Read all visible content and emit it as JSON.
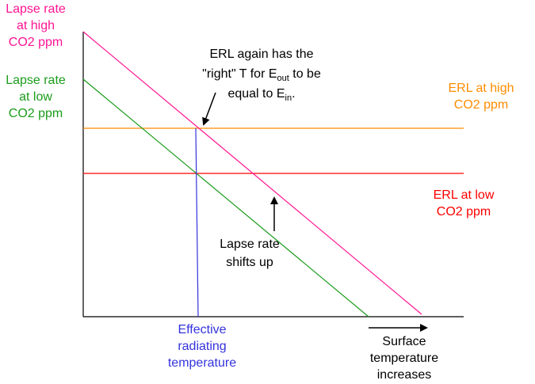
{
  "colors": {
    "high_lapse": "#ff1493",
    "low_lapse": "#1a9c1a",
    "erl_high": "#ff8c00",
    "erl_low": "#ff0000",
    "effective_temp": "#3333dd",
    "axis": "#000000"
  },
  "labels": {
    "lapse_high": [
      "Lapse rate",
      "at high",
      "CO2 ppm"
    ],
    "lapse_low": [
      "Lapse rate",
      "at low",
      "CO2 ppm"
    ],
    "erl_high": [
      "ERL at high",
      "CO2 ppm"
    ],
    "erl_low": [
      "ERL at low",
      "CO2 ppm"
    ],
    "annotation_line1": "ERL again has the",
    "annotation_line2_pre": "\"right\" T for E",
    "annotation_line2_sub": "out",
    "annotation_line2_post": " to be",
    "annotation_line3_pre": "equal to E",
    "annotation_line3_sub": "in",
    "annotation_line3_post": ".",
    "shift": [
      "Lapse rate",
      "shifts up"
    ],
    "effective": [
      "Effective",
      "radiating",
      "temperature"
    ],
    "surface": [
      "Surface",
      "temperature",
      "increases"
    ]
  }
}
